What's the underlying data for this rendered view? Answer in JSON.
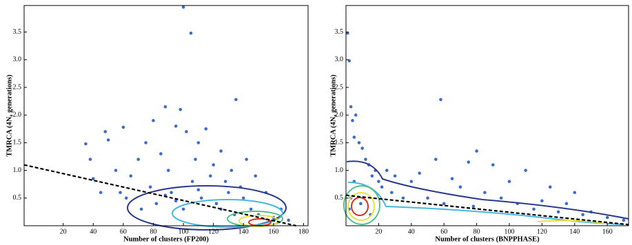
{
  "chart_data": [
    {
      "type": "scatter",
      "x_label": "Number of clusters (FP200)",
      "y_label": "TMRCA (4N₀ generations)",
      "color": "#3b6cc9",
      "xlim": [
        -6,
        183
      ],
      "ylim": [
        0,
        3.98
      ],
      "xticks": [
        20,
        40,
        60,
        80,
        100,
        120,
        140,
        160,
        180
      ],
      "yticks": [
        0.5,
        {
          "value": 1,
          "label": "1.0"
        },
        1.5,
        {
          "value": 2,
          "label": "2.0"
        },
        2.5,
        {
          "value": 3,
          "label": "3.0"
        },
        3.5
      ],
      "x": [
        35,
        38,
        40,
        45,
        48,
        50,
        55,
        58,
        60,
        62,
        65,
        70,
        72,
        75,
        78,
        80,
        82,
        85,
        88,
        90,
        92,
        95,
        98,
        100,
        100,
        102,
        105,
        106,
        108,
        110,
        112,
        115,
        118,
        120,
        122,
        125,
        128,
        130,
        132,
        135,
        138,
        140,
        142,
        145,
        148,
        150,
        155,
        160,
        165,
        170,
        88,
        95,
        110,
        125,
        134
      ],
      "y": [
        1.48,
        1.2,
        0.85,
        0.6,
        1.7,
        1.55,
        1.0,
        0.6,
        1.78,
        0.5,
        0.9,
        1.2,
        0.3,
        1.5,
        0.7,
        1.9,
        0.4,
        1.3,
        2.15,
        1.0,
        0.6,
        1.8,
        2.1,
        3.95,
        0.3,
        1.7,
        3.48,
        0.8,
        1.2,
        1.5,
        0.5,
        1.75,
        0.9,
        1.1,
        0.4,
        1.35,
        0.8,
        0.6,
        1.0,
        2.28,
        0.7,
        0.5,
        1.2,
        0.3,
        0.9,
        0.2,
        0.6,
        0.15,
        0.3,
        0.1,
        0.55,
        0.45,
        0.65,
        0.3,
        0.2
      ],
      "fit": {
        "x": [
          -6,
          175
        ],
        "y": [
          1.1,
          0
        ]
      }
    },
    {
      "type": "scatter",
      "x_label": "Number of clusters (BNPPHASE)",
      "y_label": "TMRCA (4N₀ generations)",
      "color": "#3b6cc9",
      "xlim": [
        0,
        173
      ],
      "ylim": [
        0,
        3.98
      ],
      "xticks": [
        20,
        40,
        60,
        80,
        100,
        120,
        140,
        160
      ],
      "yticks": [
        0.5,
        {
          "value": 1,
          "label": "1.0"
        },
        1.5,
        {
          "value": 2,
          "label": "2.0"
        },
        2.5,
        {
          "value": 3,
          "label": "3.0"
        },
        3.5
      ],
      "x": [
        1,
        2,
        3,
        4,
        5,
        6,
        8,
        10,
        12,
        14,
        16,
        18,
        20,
        22,
        25,
        28,
        30,
        35,
        40,
        45,
        50,
        55,
        58,
        60,
        65,
        70,
        75,
        78,
        80,
        85,
        90,
        95,
        100,
        105,
        110,
        115,
        120,
        125,
        130,
        135,
        140,
        145,
        150,
        160,
        170,
        3,
        2,
        5,
        9,
        15
      ],
      "y": [
        3.48,
        2.98,
        2.15,
        1.9,
        1.6,
        2.0,
        1.5,
        1.4,
        1.2,
        1.1,
        0.9,
        1.0,
        0.8,
        0.7,
        1.0,
        0.6,
        0.9,
        0.5,
        0.8,
        0.95,
        0.5,
        1.2,
        2.28,
        0.4,
        0.85,
        0.7,
        1.15,
        0.35,
        1.35,
        0.6,
        1.1,
        0.5,
        0.8,
        0.4,
        1.0,
        0.3,
        0.45,
        0.7,
        0.25,
        0.4,
        0.6,
        0.2,
        0.25,
        0.15,
        0.1,
        0.5,
        0.3,
        0.8,
        0.4,
        0.2
      ],
      "fit": {
        "x": [
          0,
          173
        ],
        "y": [
          0.55,
          0.02
        ]
      }
    }
  ]
}
